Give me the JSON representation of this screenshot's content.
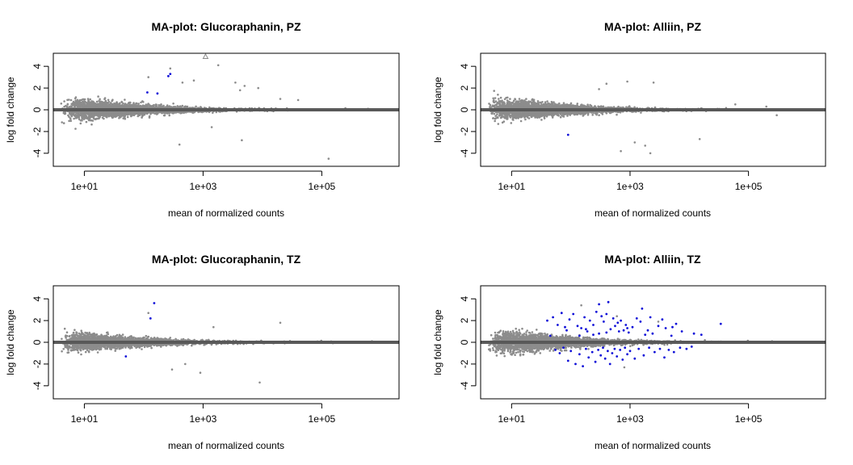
{
  "chart_data": [
    {
      "type": "scatter",
      "title": "MA-plot: Glucoraphanin, PZ",
      "xlabel": "mean of normalized counts",
      "ylabel": "log fold change",
      "x_scale": "log10",
      "xlim": [
        3,
        2000000
      ],
      "ylim": [
        -5.2,
        5.2
      ],
      "xticks": [
        "1e+01",
        "1e+03",
        "1e+05"
      ],
      "yticks": [
        -4,
        -2,
        0,
        2,
        4
      ],
      "seed": 11,
      "n_points": 3000,
      "spread": 1.0,
      "outliers": [
        [
          120,
          3.0
        ],
        [
          280,
          3.8
        ],
        [
          450,
          2.5
        ],
        [
          700,
          2.7
        ],
        [
          1800,
          4.1
        ],
        [
          3500,
          2.5
        ],
        [
          5000,
          2.2
        ],
        [
          8500,
          2.0
        ],
        [
          4200,
          1.8
        ],
        [
          20000,
          1.0
        ],
        [
          40000,
          0.9
        ],
        [
          400,
          -3.2
        ],
        [
          4500,
          -2.8
        ],
        [
          130000,
          -4.5
        ],
        [
          1400,
          -1.6
        ],
        [
          250000,
          0.15
        ],
        [
          600000,
          0.1
        ]
      ],
      "significant": [
        [
          115,
          1.6
        ],
        [
          260,
          3.1
        ],
        [
          280,
          3.3
        ],
        [
          170,
          1.5
        ]
      ],
      "triangles": [
        [
          1100,
          5.0
        ]
      ],
      "zero_line": 0,
      "colors": {
        "points": "#8c8c8c",
        "significant": "#1010d8",
        "zero_line": "#595959"
      }
    },
    {
      "type": "scatter",
      "title": "MA-plot: Alliin, PZ",
      "xlabel": "mean of normalized counts",
      "ylabel": "log fold change",
      "x_scale": "log10",
      "xlim": [
        3,
        2000000
      ],
      "ylim": [
        -5.2,
        5.2
      ],
      "xticks": [
        "1e+01",
        "1e+03",
        "1e+05"
      ],
      "yticks": [
        -4,
        -2,
        0,
        2,
        4
      ],
      "seed": 23,
      "n_points": 3000,
      "spread": 0.95,
      "outliers": [
        [
          900,
          2.6
        ],
        [
          400,
          2.4
        ],
        [
          2500,
          2.5
        ],
        [
          300,
          1.9
        ],
        [
          1200,
          -3.0
        ],
        [
          2200,
          -4.0
        ],
        [
          1800,
          -3.3
        ],
        [
          700,
          -3.8
        ],
        [
          15000,
          -2.7
        ],
        [
          300000,
          -0.5
        ],
        [
          800000,
          0.05
        ],
        [
          60000,
          0.5
        ],
        [
          200000,
          0.3
        ]
      ],
      "significant": [
        [
          90,
          -2.3
        ]
      ],
      "triangles": [],
      "zero_line": 0,
      "colors": {
        "points": "#8c8c8c",
        "significant": "#1010d8",
        "zero_line": "#595959"
      }
    },
    {
      "type": "scatter",
      "title": "MA-plot: Glucoraphanin, TZ",
      "xlabel": "mean of normalized counts",
      "ylabel": "log fold change",
      "x_scale": "log10",
      "xlim": [
        3,
        2000000
      ],
      "ylim": [
        -5.2,
        5.2
      ],
      "xticks": [
        "1e+01",
        "1e+03",
        "1e+05"
      ],
      "yticks": [
        -4,
        -2,
        0,
        2,
        4
      ],
      "seed": 37,
      "n_points": 3000,
      "spread": 0.85,
      "outliers": [
        [
          120,
          2.7
        ],
        [
          1500,
          1.4
        ],
        [
          20000,
          1.8
        ],
        [
          900,
          -2.8
        ],
        [
          9000,
          -3.7
        ],
        [
          500,
          -2.0
        ],
        [
          300,
          -2.5
        ],
        [
          250000,
          0.05
        ],
        [
          700000,
          0.1
        ]
      ],
      "significant": [
        [
          150,
          3.6
        ],
        [
          130,
          2.2
        ],
        [
          50,
          -1.3
        ]
      ],
      "triangles": [],
      "zero_line": 0,
      "colors": {
        "points": "#8c8c8c",
        "significant": "#1010d8",
        "zero_line": "#595959"
      }
    },
    {
      "type": "scatter",
      "title": "MA-plot: Alliin, TZ",
      "xlabel": "mean of normalized counts",
      "ylabel": "log fold change",
      "x_scale": "log10",
      "xlim": [
        3,
        2000000
      ],
      "ylim": [
        -5.2,
        5.2
      ],
      "xticks": [
        "1e+01",
        "1e+03",
        "1e+05"
      ],
      "yticks": [
        -4,
        -2,
        0,
        2,
        4
      ],
      "seed": 53,
      "n_points": 3000,
      "spread": 1.0,
      "outliers": [
        [
          150,
          3.4
        ],
        [
          600,
          2.4
        ],
        [
          3000,
          1.9
        ],
        [
          800,
          -2.3
        ],
        [
          250000,
          0.1
        ],
        [
          600000,
          0.05
        ]
      ],
      "significant": [
        [
          40,
          2.0
        ],
        [
          50,
          2.3
        ],
        [
          60,
          1.6
        ],
        [
          70,
          2.7
        ],
        [
          80,
          1.4
        ],
        [
          95,
          2.1
        ],
        [
          110,
          2.6
        ],
        [
          130,
          1.5
        ],
        [
          150,
          1.3
        ],
        [
          170,
          2.3
        ],
        [
          190,
          1.0
        ],
        [
          210,
          2.0
        ],
        [
          240,
          1.6
        ],
        [
          270,
          2.8
        ],
        [
          300,
          3.5
        ],
        [
          330,
          2.4
        ],
        [
          360,
          1.9
        ],
        [
          400,
          2.6
        ],
        [
          430,
          3.7
        ],
        [
          470,
          1.2
        ],
        [
          520,
          2.2
        ],
        [
          560,
          1.5
        ],
        [
          620,
          1.8
        ],
        [
          700,
          2.0
        ],
        [
          780,
          1.1
        ],
        [
          850,
          1.6
        ],
        [
          950,
          0.9
        ],
        [
          1100,
          1.4
        ],
        [
          1300,
          2.2
        ],
        [
          1600,
          3.1
        ],
        [
          2000,
          1.1
        ],
        [
          2400,
          0.8
        ],
        [
          3000,
          1.5
        ],
        [
          4000,
          1.3
        ],
        [
          5000,
          0.6
        ],
        [
          6000,
          1.7
        ],
        [
          34000,
          1.7
        ],
        [
          45,
          0.6
        ],
        [
          55,
          -0.7
        ],
        [
          65,
          -1.0
        ],
        [
          75,
          -0.5
        ],
        [
          90,
          -1.7
        ],
        [
          100,
          -0.8
        ],
        [
          120,
          -2.0
        ],
        [
          140,
          -1.1
        ],
        [
          160,
          -2.2
        ],
        [
          180,
          -0.6
        ],
        [
          200,
          -1.4
        ],
        [
          230,
          -0.9
        ],
        [
          260,
          -1.8
        ],
        [
          290,
          -0.7
        ],
        [
          320,
          -1.2
        ],
        [
          350,
          -0.5
        ],
        [
          380,
          -1.5
        ],
        [
          420,
          -0.8
        ],
        [
          460,
          -2.0
        ],
        [
          500,
          -1.0
        ],
        [
          550,
          -0.6
        ],
        [
          600,
          -1.3
        ],
        [
          680,
          -0.7
        ],
        [
          750,
          -1.6
        ],
        [
          820,
          -0.5
        ],
        [
          900,
          -1.1
        ],
        [
          1000,
          -0.8
        ],
        [
          1200,
          -1.5
        ],
        [
          1400,
          -0.6
        ],
        [
          1700,
          -1.2
        ],
        [
          2100,
          -0.5
        ],
        [
          2600,
          -0.9
        ],
        [
          3200,
          -0.6
        ],
        [
          3800,
          -1.4
        ],
        [
          4500,
          -0.7
        ],
        [
          5500,
          -0.9
        ],
        [
          7000,
          -0.5
        ],
        [
          9000,
          -0.6
        ],
        [
          11000,
          -0.4
        ],
        [
          300,
          0.8
        ],
        [
          400,
          0.9
        ],
        [
          180,
          1.2
        ],
        [
          240,
          0.7
        ],
        [
          650,
          1.0
        ],
        [
          1800,
          0.7
        ],
        [
          900,
          1.3
        ],
        [
          1500,
          1.9
        ],
        [
          2200,
          2.3
        ],
        [
          3500,
          2.1
        ],
        [
          5200,
          1.4
        ],
        [
          7500,
          1.0
        ],
        [
          12000,
          0.8
        ],
        [
          16000,
          0.7
        ],
        [
          85,
          1.1
        ],
        [
          140,
          0.6
        ]
      ],
      "triangles": [],
      "zero_line": 0,
      "colors": {
        "points": "#8c8c8c",
        "significant": "#1010d8",
        "zero_line": "#595959"
      }
    }
  ]
}
